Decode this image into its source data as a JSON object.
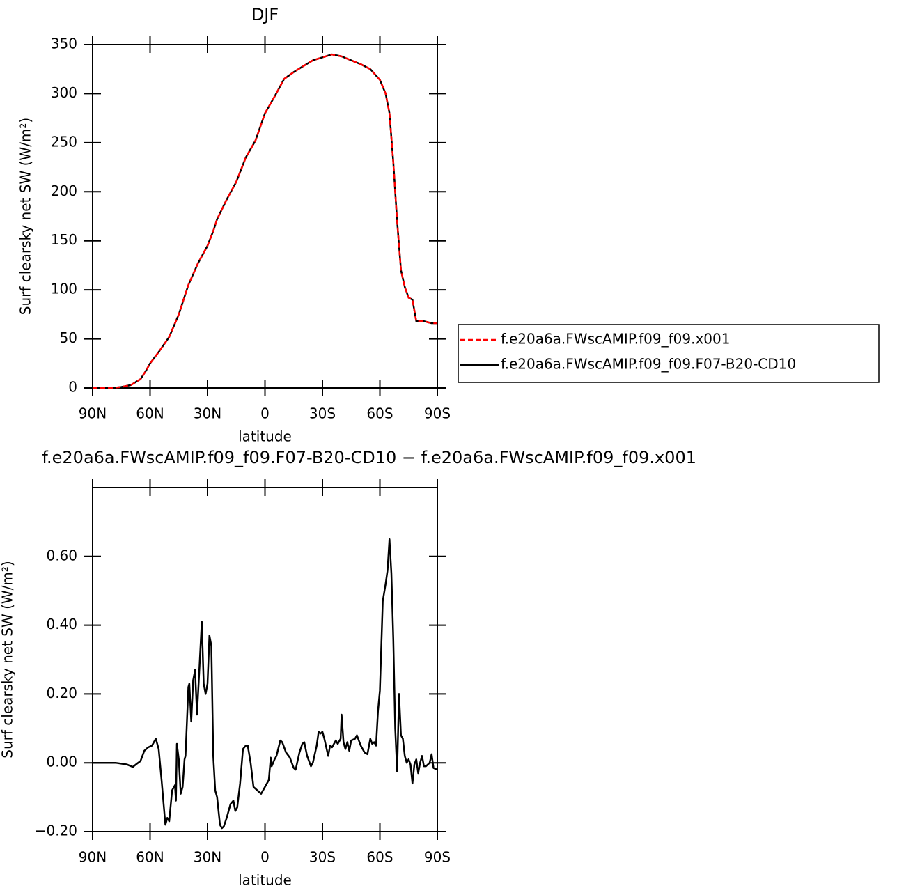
{
  "chart_data": [
    {
      "type": "line",
      "title": "DJF",
      "x_label": "latitude",
      "y_label": "Surf clearsky net SW (W/m²)",
      "x": [
        90,
        80,
        75,
        70,
        65,
        62,
        60,
        55,
        50,
        45,
        40,
        35,
        30,
        27,
        25,
        20,
        15,
        10,
        5,
        0,
        -5,
        -10,
        -15,
        -20,
        -25,
        -30,
        -35,
        -40,
        -45,
        -50,
        -55,
        -60,
        -63,
        -65,
        -67,
        -69,
        -71,
        -73,
        -75,
        -77,
        -79,
        -81,
        -83,
        -85,
        -87,
        -90
      ],
      "series": [
        {
          "name": "f.e20a6a.FWscAMIP.f09_f09.x001",
          "color": "#ff0000",
          "linestyle": "dashed",
          "values": [
            0,
            0,
            1,
            3,
            9,
            18,
            25,
            38,
            52,
            75,
            105,
            127,
            145,
            160,
            172,
            192,
            210,
            235,
            252,
            280,
            297,
            315,
            322,
            328,
            334,
            337,
            340,
            338,
            334,
            330,
            325,
            314,
            300,
            280,
            230,
            170,
            120,
            103,
            92,
            90,
            68,
            68,
            68,
            67,
            66,
            66
          ]
        },
        {
          "name": "f.e20a6a.FWscAMIP.f09_f09.F07-B20-CD10",
          "color": "#000000",
          "linestyle": "solid",
          "values": [
            0,
            0,
            1,
            3,
            9,
            18,
            25,
            38,
            52,
            75,
            105,
            127,
            145,
            160,
            172,
            192,
            210,
            235,
            252,
            280,
            297,
            315,
            322,
            328,
            334,
            337,
            340,
            338,
            334,
            330,
            325,
            314,
            300,
            280,
            230,
            170,
            120,
            103,
            92,
            90,
            68,
            68,
            68,
            67,
            66,
            66
          ]
        }
      ],
      "xlim": [
        90,
        -90
      ],
      "xticks": [
        {
          "value": 90,
          "label": "90N"
        },
        {
          "value": 60,
          "label": "60N"
        },
        {
          "value": 30,
          "label": "30N"
        },
        0,
        {
          "value": -30,
          "label": "30S"
        },
        {
          "value": -60,
          "label": "60S"
        },
        {
          "value": -90,
          "label": "90S"
        }
      ],
      "ylim": [
        0,
        350
      ],
      "yticks": [
        0,
        50,
        100,
        150,
        200,
        250,
        300,
        350
      ],
      "legend": "right"
    },
    {
      "type": "line",
      "title": "f.e20a6a.FWscAMIP.f09_f09.F07-B20-CD10 − f.e20a6a.FWscAMIP.f09_f09.x001",
      "x_label": "latitude",
      "y_label": "Surf clearsky net SW (W/m²)",
      "x": [
        90,
        78,
        72,
        69,
        67,
        65,
        63,
        61,
        59,
        57,
        55.5,
        54,
        52,
        51,
        50,
        48.5,
        47,
        46.5,
        46,
        45,
        44,
        43,
        42,
        41.5,
        40,
        39.5,
        38.5,
        37.5,
        36.5,
        35.5,
        34,
        33,
        32,
        31,
        30,
        29,
        28,
        27,
        26,
        25,
        23.5,
        22.5,
        21.5,
        20,
        19,
        18,
        16.5,
        15.5,
        14.5,
        13,
        11.5,
        10,
        9,
        7.5,
        6,
        4,
        2,
        0,
        -2,
        -3,
        -3.5,
        -5,
        -6,
        -8,
        -9,
        -11,
        -13,
        -15,
        -16,
        -18,
        -19.5,
        -20.5,
        -22,
        -24,
        -25,
        -27,
        -28,
        -29,
        -30,
        -31,
        -33,
        -34,
        -35,
        -36,
        -37,
        -38,
        -39.5,
        -40,
        -41,
        -42,
        -43,
        -44,
        -45,
        -47,
        -48,
        -50,
        -52,
        -53.5,
        -55,
        -56,
        -57,
        -58,
        -59,
        -60,
        -61.5,
        -63,
        -64,
        -65,
        -66,
        -67,
        -68,
        -69,
        -70,
        -71,
        -72,
        -73,
        -74,
        -75,
        -76,
        -77,
        -78,
        -79,
        -80,
        -81,
        -82,
        -83,
        -84,
        -86,
        -87,
        -88,
        -90
      ],
      "values": [
        0,
        0,
        -0.005,
        -0.012,
        -0.003,
        0.005,
        0.035,
        0.045,
        0.05,
        0.07,
        0.04,
        -0.05,
        -0.18,
        -0.16,
        -0.17,
        -0.08,
        -0.065,
        -0.11,
        0.055,
        0.01,
        -0.09,
        -0.07,
        0.01,
        0.02,
        0.22,
        0.23,
        0.12,
        0.24,
        0.27,
        0.14,
        0.3,
        0.41,
        0.23,
        0.2,
        0.23,
        0.37,
        0.34,
        0.02,
        -0.08,
        -0.1,
        -0.18,
        -0.19,
        -0.185,
        -0.16,
        -0.14,
        -0.12,
        -0.11,
        -0.14,
        -0.13,
        -0.06,
        0.04,
        0.05,
        0.05,
        0,
        -0.07,
        -0.08,
        -0.09,
        -0.07,
        -0.05,
        0.015,
        -0.01,
        0.01,
        0.02,
        0.065,
        0.06,
        0.03,
        0.015,
        -0.015,
        -0.02,
        0.03,
        0.055,
        0.06,
        0.02,
        -0.01,
        0,
        0.05,
        0.09,
        0.085,
        0.09,
        0.07,
        0.02,
        0.05,
        0.045,
        0.055,
        0.065,
        0.055,
        0.07,
        0.14,
        0.06,
        0.04,
        0.06,
        0.035,
        0.065,
        0.07,
        0.08,
        0.05,
        0.03,
        0.025,
        0.07,
        0.055,
        0.06,
        0.05,
        0.15,
        0.21,
        0.47,
        0.52,
        0.56,
        0.65,
        0.55,
        0.36,
        0.1,
        -0.025,
        0.2,
        0.08,
        0.07,
        0.02,
        0,
        0.01,
        -0.005,
        -0.06,
        -0.005,
        0.01,
        -0.03,
        0,
        0.02,
        -0.01,
        -0.01,
        0,
        0.025,
        -0.015,
        -0.02
      ],
      "color": "#000000",
      "xlim": [
        90,
        -90
      ],
      "xticks": [
        {
          "value": 90,
          "label": "90N"
        },
        {
          "value": 60,
          "label": "60N"
        },
        {
          "value": 30,
          "label": "30N"
        },
        0,
        {
          "value": -30,
          "label": "30S"
        },
        {
          "value": -60,
          "label": "60S"
        },
        {
          "value": -90,
          "label": "90S"
        }
      ],
      "ylim": [
        -0.2,
        0.8
      ],
      "yticks": [
        {
          "value": -0.2,
          "label": "−0.20"
        },
        {
          "value": 0,
          "label": "0.00"
        },
        {
          "value": 0.2,
          "label": "0.20"
        },
        {
          "value": 0.4,
          "label": "0.40"
        },
        {
          "value": 0.6,
          "label": "0.60"
        }
      ]
    }
  ]
}
